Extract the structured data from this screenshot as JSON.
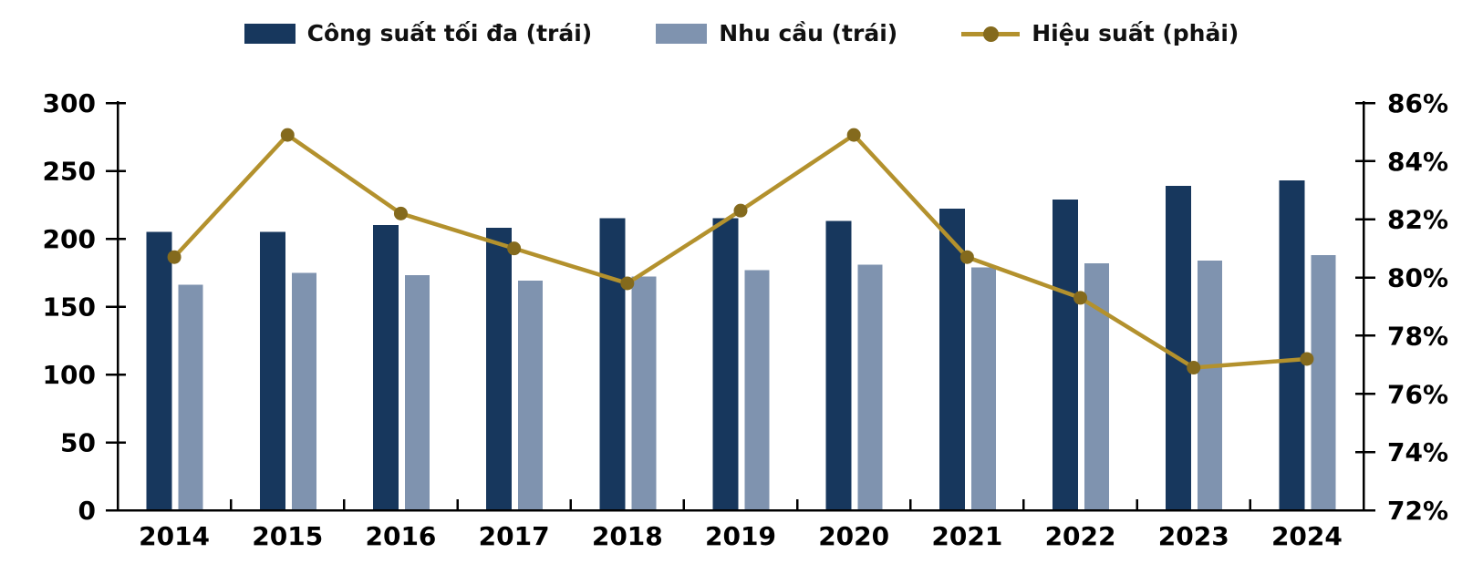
{
  "legend": {
    "capacity_label": "Công suất tối đa (trái)",
    "demand_label": "Nhu cầu (trái)",
    "efficiency_label": "Hiệu suất (phải)"
  },
  "colors": {
    "capacity": "#17375d",
    "demand": "#7f93af",
    "efficiency_line": "#b3912d",
    "efficiency_marker": "#846a1d",
    "axis": "#000000"
  },
  "chart_data": {
    "type": "bar+line combo",
    "categories": [
      "2014",
      "2015",
      "2016",
      "2017",
      "2018",
      "2019",
      "2020",
      "2021",
      "2022",
      "2023",
      "2024"
    ],
    "series": [
      {
        "name": "Công suất tối đa (trái)",
        "type": "bar",
        "axis": "left",
        "values": [
          205,
          205,
          210,
          208,
          215,
          215,
          213,
          222,
          229,
          239,
          243
        ]
      },
      {
        "name": "Nhu cầu (trái)",
        "type": "bar",
        "axis": "left",
        "values": [
          166,
          175,
          173,
          169,
          172,
          177,
          181,
          179,
          182,
          184,
          188
        ]
      },
      {
        "name": "Hiệu suất (phải)",
        "type": "line",
        "axis": "right",
        "unit": "%",
        "values": [
          80.7,
          84.9,
          82.2,
          81.0,
          79.8,
          82.3,
          84.9,
          80.7,
          79.3,
          76.9,
          77.2
        ]
      }
    ],
    "left_axis": {
      "min": 0,
      "max": 300,
      "tick_step": 50,
      "tick_labels": [
        "0",
        "50",
        "100",
        "150",
        "200",
        "250",
        "300"
      ]
    },
    "right_axis": {
      "min": 72,
      "max": 86,
      "tick_step": 2,
      "tick_labels": [
        "72%",
        "74%",
        "76%",
        "78%",
        "80%",
        "82%",
        "84%",
        "86%"
      ]
    },
    "legend_position": "top",
    "grid": false,
    "title": ""
  }
}
